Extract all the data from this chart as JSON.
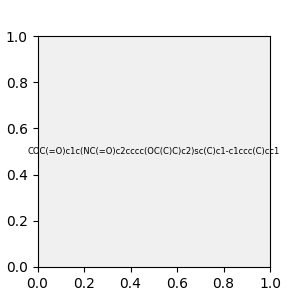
{
  "smiles": "COC(=O)c1c(NC(=O)c2cccc(OC(C)C)c2)sc(C)c1-c1ccc(C)cc1",
  "image_size": 300,
  "background_color": "#f0f0f0",
  "title": ""
}
